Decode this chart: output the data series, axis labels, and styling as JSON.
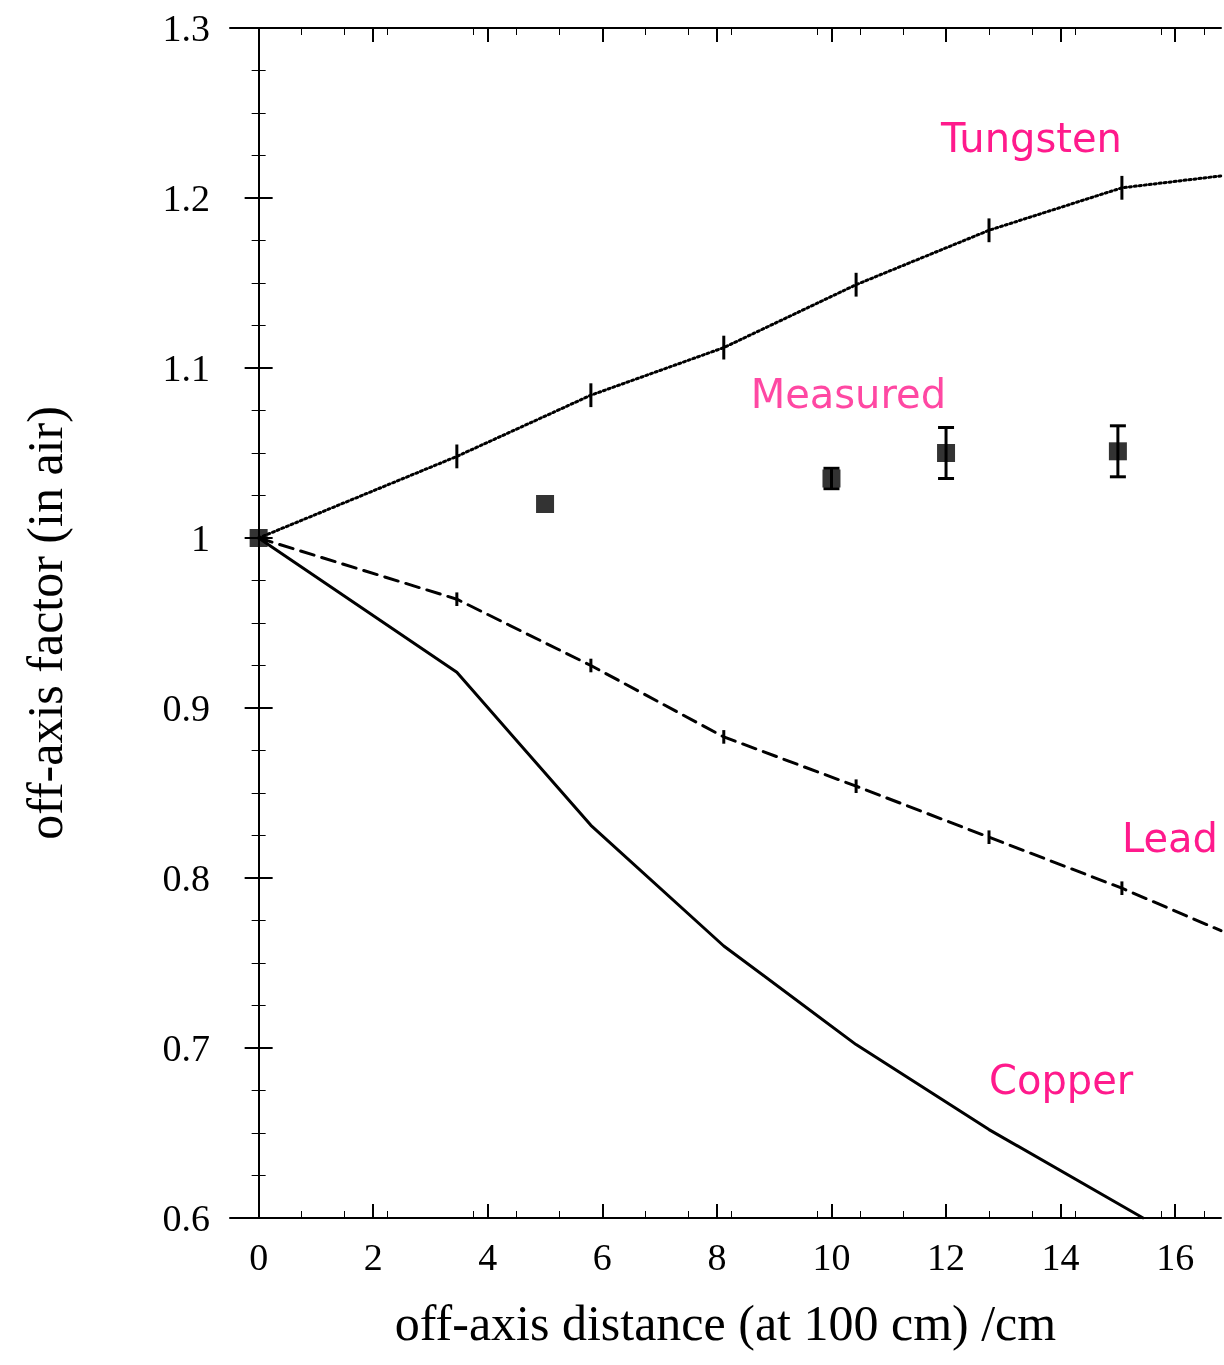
{
  "chart_data": {
    "type": "line",
    "xlabel": "off-axis distance (at 100 cm) /cm",
    "ylabel": "off-axis factor (in air)",
    "xlim": [
      -0.5,
      16.8
    ],
    "xticks": [
      0,
      2,
      4,
      6,
      8,
      10,
      12,
      14,
      16
    ],
    "ylim": [
      0.6,
      1.3
    ],
    "yticks": [
      {
        "value": 0.6,
        "label": "0.6"
      },
      {
        "value": 0.7,
        "label": "0.7"
      },
      {
        "value": 0.8,
        "label": "0.8"
      },
      {
        "value": 0.9,
        "label": "0.9"
      },
      1,
      {
        "value": 1.1,
        "label": "1.1"
      },
      {
        "value": 1.2,
        "label": "1.2"
      },
      {
        "value": 1.3,
        "label": "1.3"
      }
    ],
    "grid": false,
    "legend": false,
    "series": [
      {
        "name": "Tungsten",
        "color": "#000000",
        "line_style": "dotted",
        "marker": "none",
        "x": [
          0,
          3.46,
          5.8,
          8.12,
          10.43,
          12.75,
          15.07,
          16.8
        ],
        "values": [
          1,
          1.048,
          1.084,
          1.112,
          1.149,
          1.181,
          1.206,
          1.213
        ],
        "errors": [
          null,
          0.007,
          0.007,
          0.007,
          0.007,
          0.007,
          0.007,
          null
        ]
      },
      {
        "name": "Measured",
        "type": "scatter",
        "color": "#000000",
        "marker": "square",
        "x": [
          0,
          5,
          10,
          12,
          15
        ],
        "values": [
          1,
          1.02,
          1.035,
          1.05,
          1.051
        ],
        "errors": [
          null,
          null,
          0.006,
          0.015,
          0.015
        ]
      },
      {
        "name": "Lead",
        "color": "#000000",
        "line_style": "dashed",
        "marker": "none",
        "x": [
          0,
          3.46,
          5.8,
          8.12,
          10.43,
          12.75,
          15.07,
          16.8
        ],
        "values": [
          1,
          0.964,
          0.925,
          0.883,
          0.854,
          0.824,
          0.794,
          0.769
        ],
        "errors": [
          null,
          0.004,
          0.004,
          0.004,
          0.004,
          0.004,
          0.004,
          null
        ]
      },
      {
        "name": "Copper",
        "color": "#000000",
        "line_style": "solid",
        "marker": "none",
        "x": [
          0,
          3.46,
          5.8,
          8.12,
          10.43,
          12.75,
          15.44
        ],
        "values": [
          1,
          0.921,
          0.831,
          0.76,
          0.702,
          0.652,
          0.6
        ]
      }
    ]
  }
}
